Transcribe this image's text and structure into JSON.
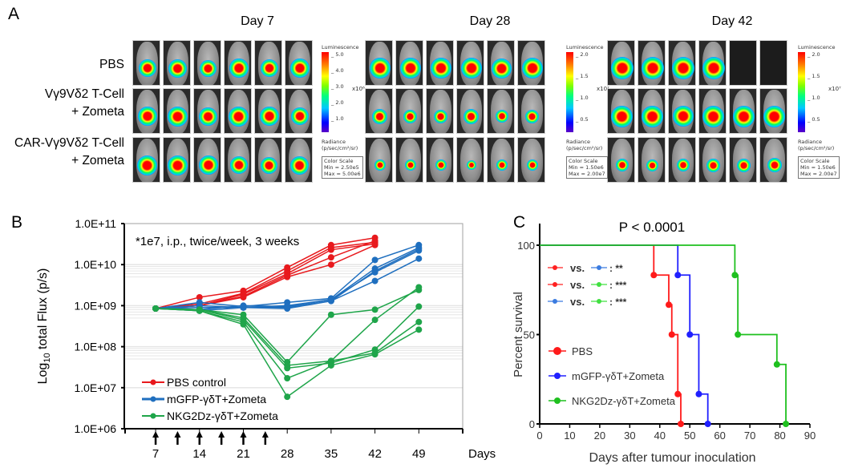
{
  "panel_a": {
    "letter": "A",
    "days": [
      "Day 7",
      "Day 28",
      "Day 42"
    ],
    "rows": [
      {
        "label_lines": [
          "PBS"
        ]
      },
      {
        "label_lines": [
          "Vγ9Vδ2 T-Cell",
          "+ Zometa"
        ]
      },
      {
        "label_lines": [
          "CAR-Vγ9Vδ2 T-Cell",
          "+ Zometa"
        ]
      }
    ],
    "colorbars": [
      {
        "title": "Luminescence",
        "ticks": [
          "5.0",
          "4.0",
          "3.0",
          "2.0",
          "1.0"
        ],
        "exponent": "x10⁶",
        "unit_line1": "Radiance",
        "unit_line2": "(p/sec/cm²/sr)",
        "scale_title": "Color Scale",
        "min": "Min = 2.50e5",
        "max": "Max = 5.00e6"
      },
      {
        "title": "Luminescence",
        "ticks": [
          "2.0",
          "1.5",
          "1.0",
          "0.5"
        ],
        "exponent": "x10⁷",
        "unit_line1": "Radiance",
        "unit_line2": "(p/sec/cm²/sr)",
        "scale_title": "Color Scale",
        "min": "Min = 1.50e6",
        "max": "Max = 2.00e7"
      },
      {
        "title": "Luminescence",
        "ticks": [
          "2.0",
          "1.5",
          "1.0",
          "0.5"
        ],
        "exponent": "x10⁷",
        "unit_line1": "Radiance",
        "unit_line2": "(p/sec/cm²/sr)",
        "scale_title": "Color Scale",
        "min": "Min = 1.50e6",
        "max": "Max = 2.00e7"
      }
    ],
    "signal_intensity": [
      [
        [
          0.7,
          0.75,
          0.65,
          0.8,
          0.7,
          0.8
        ],
        [
          0.8,
          0.85,
          0.75,
          0.85,
          0.8,
          0.7
        ],
        [
          0.85,
          0.85,
          0.8,
          0.7,
          0.65,
          0.75
        ]
      ],
      [
        [
          0.9,
          0.9,
          0.9,
          0.9,
          0.85,
          0.9
        ],
        [
          0.55,
          0.45,
          0.45,
          0.55,
          0.4,
          0.45
        ],
        [
          0.3,
          0.3,
          0.3,
          0.2,
          0.3,
          0.3
        ]
      ],
      [
        [
          1.0,
          1.0,
          1.0,
          1.0,
          0.0,
          0.0
        ],
        [
          0.95,
          0.95,
          0.9,
          0.95,
          0.95,
          0.95
        ],
        [
          0.4,
          0.35,
          0.4,
          0.45,
          0.45,
          0.5
        ]
      ]
    ],
    "colors": {
      "high": "#ff0000",
      "mid": "#ffff00",
      "low": "#00c8ff",
      "edge": "#5a00c8"
    }
  },
  "panel_b": {
    "letter": "B",
    "annotation": "*1e7, i.p., twice/week, 3 weeks",
    "arrow_days": [
      7,
      10.5,
      14,
      17.5,
      21,
      24.5
    ]
  },
  "panel_c": {
    "letter": "C",
    "p_value": "P < 0.0001",
    "comparisons": [
      {
        "a": "#ff2020",
        "b": "#3a7be0",
        "vs": "vs.",
        "sig": ": **"
      },
      {
        "a": "#ff2020",
        "b": "#40e040",
        "vs": "vs.",
        "sig": ": ***"
      },
      {
        "a": "#3a7be0",
        "b": "#40e040",
        "vs": "vs.",
        "sig": ": ***"
      }
    ]
  },
  "chart_data": [
    {
      "type": "line",
      "title": "",
      "xlabel": "Days",
      "ylabel": "Log10 total Flux (p/s)",
      "yscale": "log",
      "ylim": [
        1000000.0,
        100000000000.0
      ],
      "xlim": [
        2,
        56
      ],
      "x_ticks": [
        7,
        14,
        21,
        28,
        35,
        42,
        49
      ],
      "y_tick_labels": [
        "1.0E+06",
        "1.0E+07",
        "1.0E+08",
        "1.0E+09",
        "1.0E+10",
        "1.0E+11"
      ],
      "legend_position": "bottom-left",
      "grid": true,
      "series": [
        {
          "name": "PBS control",
          "color": "#e8191d",
          "group": "PBS",
          "x": [
            7,
            14,
            21,
            28,
            35,
            42
          ],
          "values": [
            850000000.0,
            1600000000.0,
            2300000000.0,
            8500000000.0,
            30000000000.0,
            45000000000.0
          ]
        },
        {
          "name": "PBS control",
          "color": "#e8191d",
          "group": "PBS",
          "x": [
            7,
            14,
            21,
            28,
            35,
            42
          ],
          "values": [
            850000000.0,
            1100000000.0,
            2000000000.0,
            7000000000.0,
            26000000000.0,
            35000000000.0
          ]
        },
        {
          "name": "PBS control",
          "color": "#e8191d",
          "group": "PBS",
          "x": [
            7,
            14,
            21,
            28,
            35,
            42
          ],
          "values": [
            850000000.0,
            1000000000.0,
            1900000000.0,
            6000000000.0,
            23000000000.0,
            32000000000.0
          ]
        },
        {
          "name": "PBS control",
          "color": "#e8191d",
          "group": "PBS",
          "x": [
            7,
            14,
            21,
            28,
            35,
            42
          ],
          "values": [
            850000000.0,
            1000000000.0,
            1700000000.0,
            5500000000.0,
            15000000000.0,
            38000000000.0
          ]
        },
        {
          "name": "PBS control",
          "color": "#e8191d",
          "group": "PBS",
          "x": [
            7,
            14,
            21,
            28,
            35,
            42
          ],
          "values": [
            850000000.0,
            1000000000.0,
            1600000000.0,
            5000000000.0,
            10000000000.0,
            30000000000.0
          ]
        },
        {
          "name": "mGFP-γδT+Zometa",
          "color": "#1f6fbf",
          "group": "mGFP",
          "x": [
            7,
            14,
            21,
            28,
            35,
            42,
            49
          ],
          "values": [
            850000000.0,
            1200000000.0,
            950000000.0,
            1200000000.0,
            1500000000.0,
            13000000000.0,
            30000000000.0
          ]
        },
        {
          "name": "mGFP-γδT+Zometa",
          "color": "#1f6fbf",
          "group": "mGFP",
          "x": [
            7,
            14,
            21,
            28,
            35,
            42,
            49
          ],
          "values": [
            850000000.0,
            1000000000.0,
            900000000.0,
            1000000000.0,
            1400000000.0,
            8000000000.0,
            26000000000.0
          ]
        },
        {
          "name": "mGFP-γδT+Zometa",
          "color": "#1f6fbf",
          "group": "mGFP",
          "x": [
            7,
            14,
            21,
            28,
            35,
            42,
            49
          ],
          "values": [
            850000000.0,
            900000000.0,
            900000000.0,
            900000000.0,
            1300000000.0,
            7000000000.0,
            24000000000.0
          ]
        },
        {
          "name": "mGFP-γδT+Zometa",
          "color": "#1f6fbf",
          "group": "mGFP",
          "x": [
            7,
            14,
            21,
            28,
            35,
            42,
            49
          ],
          "values": [
            850000000.0,
            800000000.0,
            1000000000.0,
            950000000.0,
            1400000000.0,
            6500000000.0,
            22000000000.0
          ]
        },
        {
          "name": "mGFP-γδT+Zometa",
          "color": "#1f6fbf",
          "group": "mGFP",
          "x": [
            7,
            14,
            21,
            28,
            35,
            42,
            49
          ],
          "values": [
            850000000.0,
            750000000.0,
            900000000.0,
            850000000.0,
            1300000000.0,
            4000000000.0,
            14000000000.0
          ]
        },
        {
          "name": "NKG2Dz-γδT+Zometa",
          "color": "#1fa54a",
          "group": "NKG2Dz",
          "x": [
            7,
            14,
            21,
            28,
            35,
            42,
            49
          ],
          "values": [
            850000000.0,
            800000000.0,
            600000000.0,
            42000000.0,
            600000000.0,
            800000000.0,
            2400000000.0
          ]
        },
        {
          "name": "NKG2Dz-γδT+Zometa",
          "color": "#1fa54a",
          "group": "NKG2Dz",
          "x": [
            7,
            14,
            21,
            28,
            35,
            42,
            49
          ],
          "values": [
            850000000.0,
            800000000.0,
            500000000.0,
            35000000.0,
            45000000.0,
            450000000.0,
            2800000000.0
          ]
        },
        {
          "name": "NKG2Dz-γδT+Zometa",
          "color": "#1fa54a",
          "group": "NKG2Dz",
          "x": [
            7,
            14,
            21,
            28,
            35,
            42,
            49
          ],
          "values": [
            850000000.0,
            800000000.0,
            450000000.0,
            30000000.0,
            40000000.0,
            85000000.0,
            950000000.0
          ]
        },
        {
          "name": "NKG2Dz-γδT+Zometa",
          "color": "#1fa54a",
          "group": "NKG2Dz",
          "x": [
            7,
            14,
            21,
            28,
            35,
            42,
            49
          ],
          "values": [
            850000000.0,
            750000000.0,
            400000000.0,
            17000000.0,
            45000000.0,
            70000000.0,
            400000000.0
          ]
        },
        {
          "name": "NKG2Dz-γδT+Zometa",
          "color": "#1fa54a",
          "group": "NKG2Dz",
          "x": [
            7,
            14,
            21,
            28,
            35,
            42,
            49
          ],
          "values": [
            850000000.0,
            750000000.0,
            350000000.0,
            6000000.0,
            35000000.0,
            65000000.0,
            260000000.0
          ]
        }
      ],
      "legend": [
        {
          "label": "PBS control",
          "color": "#e8191d"
        },
        {
          "label": "mGFP-γδT+Zometa",
          "color": "#1f6fbf"
        },
        {
          "label": "NKG2Dz-γδT+Zometa",
          "color": "#1fa54a"
        }
      ]
    },
    {
      "type": "line",
      "subtype": "kaplan-meier",
      "title": "P < 0.0001",
      "xlabel": "Days after tumour inoculation",
      "ylabel": "Percent survival",
      "xlim": [
        0,
        90
      ],
      "ylim": [
        0,
        100
      ],
      "x_ticks": [
        0,
        10,
        20,
        30,
        40,
        50,
        60,
        70,
        80,
        90
      ],
      "y_ticks": [
        0,
        50,
        100
      ],
      "legend_position": "left",
      "series": [
        {
          "name": "PBS",
          "color": "#ff1a1a",
          "events": [
            [
              38,
              83.3
            ],
            [
              43,
              66.7
            ],
            [
              44,
              50
            ],
            [
              46,
              16.7
            ],
            [
              47,
              0
            ]
          ]
        },
        {
          "name": "mGFP-γδT+Zometa",
          "color": "#2020ff",
          "events": [
            [
              46,
              83.3
            ],
            [
              50,
              50
            ],
            [
              53,
              16.7
            ],
            [
              56,
              0
            ]
          ]
        },
        {
          "name": "NKG2Dz-γδT+Zometa",
          "color": "#1fc01f",
          "events": [
            [
              65,
              83.3
            ],
            [
              66,
              50
            ],
            [
              79,
              33.3
            ],
            [
              82,
              0
            ]
          ]
        }
      ]
    }
  ]
}
